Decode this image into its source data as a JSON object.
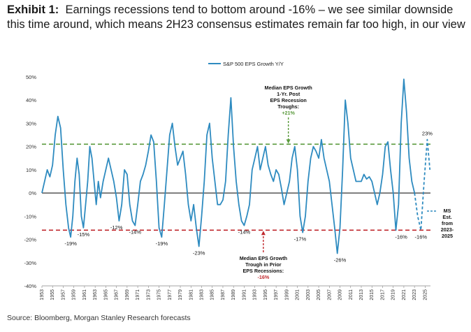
{
  "title_label": "Exhibit 1:",
  "title_text": "Earnings recessions tend to bottom around -16% – we see similar downside this time around, which means 2H23 consensus estimates remain far too high, in our view",
  "source": "Source: Bloomberg, Morgan Stanley Research forecasts",
  "colors": {
    "series": "#2e8bc0",
    "green": "#5a9a3c",
    "red": "#c0282d",
    "axis": "#000000"
  },
  "chart_data": {
    "type": "line",
    "legend": "S&P 500 EPS Growth Y/Y",
    "ylim": [
      -40,
      50
    ],
    "yticks": [
      -40,
      -30,
      -20,
      -10,
      0,
      10,
      20,
      30,
      40,
      50
    ],
    "ytick_labels": [
      "-40%",
      "-30%",
      "-20%",
      "-10%",
      "0%",
      "10%",
      "20%",
      "30%",
      "40%",
      "50%"
    ],
    "xlim": [
      1953,
      2026
    ],
    "xticks": [
      "1953",
      "1955",
      "1957",
      "1959",
      "1961",
      "1963",
      "1965",
      "1967",
      "1969",
      "1971",
      "1973",
      "1975",
      "1977",
      "1979",
      "1981",
      "1983",
      "1985",
      "1987",
      "1989",
      "1991",
      "1993",
      "1995",
      "1997",
      "1999",
      "2001",
      "2003",
      "2005",
      "2007",
      "2009",
      "2011",
      "2013",
      "2015",
      "2017",
      "2019",
      "2021",
      "2023",
      "2025"
    ],
    "series": [
      {
        "name": "S&P 500 EPS Growth Y/Y",
        "x": [
          1953,
          1953.5,
          1954,
          1954.5,
          1955,
          1955.5,
          1956,
          1956.5,
          1957,
          1957.5,
          1958,
          1958.4,
          1958.8,
          1959.2,
          1959.6,
          1960,
          1960.4,
          1960.8,
          1961.2,
          1961.6,
          1962,
          1962.4,
          1962.8,
          1963.2,
          1963.6,
          1964,
          1964.5,
          1965,
          1965.5,
          1966,
          1966.5,
          1967,
          1967.5,
          1968,
          1968.5,
          1969,
          1969.5,
          1970,
          1970.5,
          1971,
          1971.5,
          1972,
          1972.5,
          1973,
          1973.5,
          1974,
          1974.5,
          1975,
          1975.5,
          1976,
          1976.5,
          1977,
          1977.5,
          1978,
          1978.5,
          1979,
          1979.5,
          1980,
          1980.5,
          1981,
          1981.5,
          1982,
          1982.5,
          1983,
          1983.5,
          1984,
          1984.5,
          1985,
          1985.5,
          1986,
          1986.5,
          1987,
          1987.5,
          1988,
          1988.5,
          1989,
          1989.5,
          1990,
          1990.5,
          1991,
          1991.5,
          1992,
          1992.5,
          1993,
          1993.5,
          1994,
          1994.5,
          1995,
          1995.5,
          1996,
          1996.5,
          1997,
          1997.5,
          1998,
          1998.5,
          1999,
          1999.5,
          2000,
          2000.5,
          2001,
          2001.5,
          2002,
          2002.5,
          2003,
          2003.5,
          2004,
          2004.5,
          2005,
          2005.5,
          2006,
          2006.5,
          2007,
          2007.5,
          2008,
          2008.5,
          2009,
          2009.5,
          2010,
          2010.5,
          2011,
          2011.5,
          2012,
          2012.5,
          2013,
          2013.5,
          2014,
          2014.5,
          2015,
          2015.5,
          2016,
          2016.5,
          2017,
          2017.5,
          2018,
          2018.5,
          2019,
          2019.5,
          2020,
          2020.5,
          2021,
          2021.5,
          2022,
          2022.5,
          2023
        ],
        "values": [
          0,
          5,
          10,
          7,
          12,
          25,
          33,
          28,
          10,
          -5,
          -15,
          -19,
          -10,
          5,
          15,
          8,
          -10,
          -15,
          -5,
          5,
          20,
          15,
          5,
          -5,
          5,
          -2,
          5,
          10,
          15,
          10,
          5,
          -2,
          -12,
          -5,
          10,
          8,
          -5,
          -12,
          -14,
          -5,
          5,
          8,
          12,
          18,
          25,
          22,
          5,
          -15,
          -19,
          -5,
          10,
          25,
          30,
          20,
          12,
          15,
          18,
          8,
          -5,
          -12,
          -5,
          -15,
          -23,
          -10,
          5,
          25,
          30,
          15,
          5,
          -5,
          -5,
          -3,
          5,
          25,
          41,
          20,
          5,
          -5,
          -12,
          -14,
          -10,
          -5,
          10,
          15,
          20,
          10,
          15,
          20,
          12,
          8,
          5,
          10,
          8,
          2,
          -5,
          0,
          5,
          15,
          20,
          10,
          -10,
          -17,
          -10,
          5,
          15,
          20,
          18,
          15,
          23,
          15,
          10,
          5,
          -5,
          -15,
          -26,
          -15,
          10,
          40,
          30,
          15,
          10,
          5,
          5,
          5,
          8,
          6,
          7,
          5,
          0,
          -5,
          0,
          8,
          20,
          22,
          10,
          0,
          -16,
          -5,
          30,
          49,
          35,
          15,
          5,
          0
        ]
      },
      {
        "name": "MS Est. from 2023-2025",
        "style": "dashed",
        "x": [
          2023,
          2023.6,
          2024.2,
          2024.8,
          2025.4,
          2025.9
        ],
        "values": [
          0,
          -10,
          -16,
          5,
          23,
          10
        ]
      }
    ],
    "reference_lines": [
      {
        "value": 21,
        "color": "green",
        "label": "Median EPS Growth 1-Yr. Post EPS Recession Troughs:",
        "label_value": "+21%"
      },
      {
        "value": -16,
        "color": "red",
        "label": "Median EPS Growth Trough in Prior EPS Recessions:",
        "label_value": "-16%"
      }
    ],
    "trough_labels": [
      {
        "x": 1958.4,
        "value": -19,
        "text": "-19%"
      },
      {
        "x": 1960.8,
        "value": -15,
        "text": "-15%"
      },
      {
        "x": 1967.0,
        "value": -12,
        "text": "-12%"
      },
      {
        "x": 1970.5,
        "value": -14,
        "text": "-14%"
      },
      {
        "x": 1975.5,
        "value": -19,
        "text": "-19%"
      },
      {
        "x": 1982.5,
        "value": -23,
        "text": "-23%"
      },
      {
        "x": 1991.0,
        "value": -14,
        "text": "-14%"
      },
      {
        "x": 2001.5,
        "value": -17,
        "text": "-17%"
      },
      {
        "x": 2009.0,
        "value": -26,
        "text": "-26%"
      },
      {
        "x": 2020.5,
        "value": -16,
        "text": "-16%"
      },
      {
        "x": 2024.2,
        "value": -16,
        "text": "-16%"
      },
      {
        "x": 2025.4,
        "value": 23,
        "text": "23%"
      }
    ],
    "green_annotation": [
      "Median EPS Growth",
      "1-Yr. Post",
      "EPS Recession",
      "Troughs:",
      "+21%"
    ],
    "red_annotation": [
      "Median EPS Growth",
      "Trough in Prior",
      "EPS Recessions:",
      "-16%"
    ],
    "ms_annotation": [
      "MS",
      "Est.",
      "from",
      "2023-",
      "2025"
    ]
  }
}
